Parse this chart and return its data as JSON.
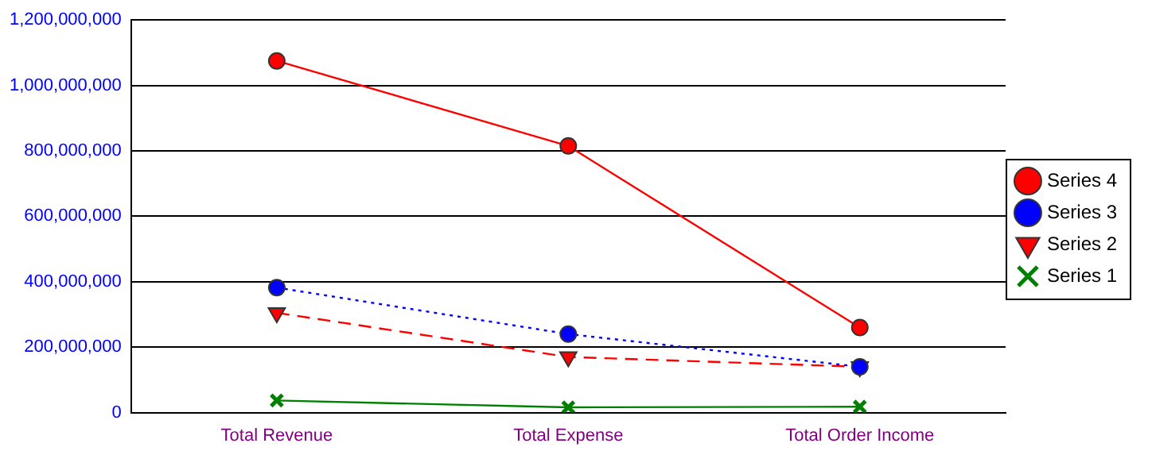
{
  "chart_data": {
    "type": "line",
    "categories": [
      "Total Revenue",
      "Total Expense",
      "Total Order Income"
    ],
    "series": [
      {
        "name": "Series 4",
        "color": "#ff0000",
        "marker": "circle",
        "line_style": "solid",
        "values": [
          1075000000,
          815000000,
          260000000
        ]
      },
      {
        "name": "Series 3",
        "color": "#0000ff",
        "marker": "circle",
        "line_style": "dotted",
        "values": [
          382000000,
          240000000,
          140000000
        ]
      },
      {
        "name": "Series 2",
        "color": "#ff0000",
        "marker": "triangle",
        "line_style": "dashed",
        "values": [
          305000000,
          170000000,
          140000000
        ]
      },
      {
        "name": "Series 1",
        "color": "#008000",
        "marker": "cross",
        "line_style": "solid",
        "values": [
          37000000,
          16000000,
          18000000
        ]
      }
    ],
    "ylim": [
      0,
      1200000000
    ],
    "yticks": [
      0,
      {
        "value": 200000000,
        "label": "200,000,000"
      },
      {
        "value": 400000000,
        "label": "400,000,000"
      },
      {
        "value": 600000000,
        "label": "600,000,000"
      },
      {
        "value": 800000000,
        "label": "800,000,000"
      },
      {
        "value": 1000000000,
        "label": "1,000,000,000"
      },
      {
        "value": 1200000000,
        "label": "1,200,000,000"
      }
    ],
    "grid": "y",
    "legend": "right"
  }
}
